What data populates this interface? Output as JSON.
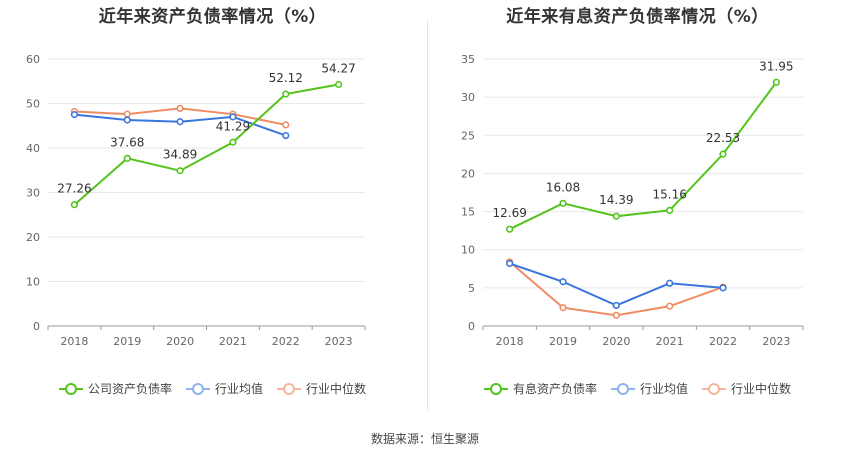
{
  "source": "数据来源：恒生聚源",
  "chart_data": [
    {
      "type": "line",
      "title": "近年来资产负债率情况（%）",
      "categories": [
        "2018",
        "2019",
        "2020",
        "2021",
        "2022",
        "2023"
      ],
      "ylim": [
        0,
        60
      ],
      "yticks": [
        0,
        10,
        20,
        30,
        40,
        50,
        60
      ],
      "grid": true,
      "legend": "bottom",
      "series": [
        {
          "name": "公司资产负债率",
          "color": "#52c41a",
          "values": [
            27.26,
            37.68,
            34.89,
            41.29,
            52.12,
            54.27
          ],
          "labels": [
            "27.26",
            "37.68",
            "34.89",
            "41.29",
            "52.12",
            "54.27"
          ]
        },
        {
          "name": "行业均值",
          "color": "#3a75dd",
          "values": [
            47.5,
            46.3,
            45.9,
            47.0,
            42.8,
            null
          ]
        },
        {
          "name": "行业中位数",
          "color": "#f08c64",
          "values": [
            48.2,
            47.6,
            48.9,
            47.6,
            45.2,
            null
          ]
        }
      ]
    },
    {
      "type": "line",
      "title": "近年来有息资产负债率情况（%）",
      "categories": [
        "2018",
        "2019",
        "2020",
        "2021",
        "2022",
        "2023"
      ],
      "ylim": [
        0,
        35
      ],
      "yticks": [
        0,
        5,
        10,
        15,
        20,
        25,
        30,
        35
      ],
      "grid": true,
      "legend": "bottom",
      "series": [
        {
          "name": "有息资产负债率",
          "color": "#52c41a",
          "values": [
            12.69,
            16.08,
            14.39,
            15.16,
            22.53,
            31.95
          ],
          "labels": [
            "12.69",
            "16.08",
            "14.39",
            "15.16",
            "22.53",
            "31.95"
          ]
        },
        {
          "name": "行业均值",
          "color": "#3a75dd",
          "values": [
            8.2,
            5.8,
            2.7,
            5.6,
            5.0,
            null
          ]
        },
        {
          "name": "行业中位数",
          "color": "#f08c64",
          "values": [
            8.4,
            2.4,
            1.4,
            2.6,
            5.1,
            null
          ]
        }
      ]
    }
  ]
}
